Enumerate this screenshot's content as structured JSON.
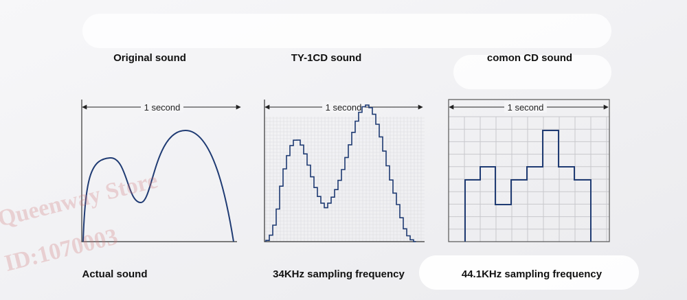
{
  "panels": [
    {
      "title": "Original sound",
      "span": "1 second",
      "caption": "Actual sound"
    },
    {
      "title": "TY-1CD sound",
      "span": "1 second",
      "caption": "34KHz sampling frequency"
    },
    {
      "title": "comon CD sound",
      "span": "1 second",
      "caption": "44.1KHz sampling frequency"
    }
  ],
  "watermark": {
    "store": "Queenway Store",
    "id": "ID:1070003"
  }
}
